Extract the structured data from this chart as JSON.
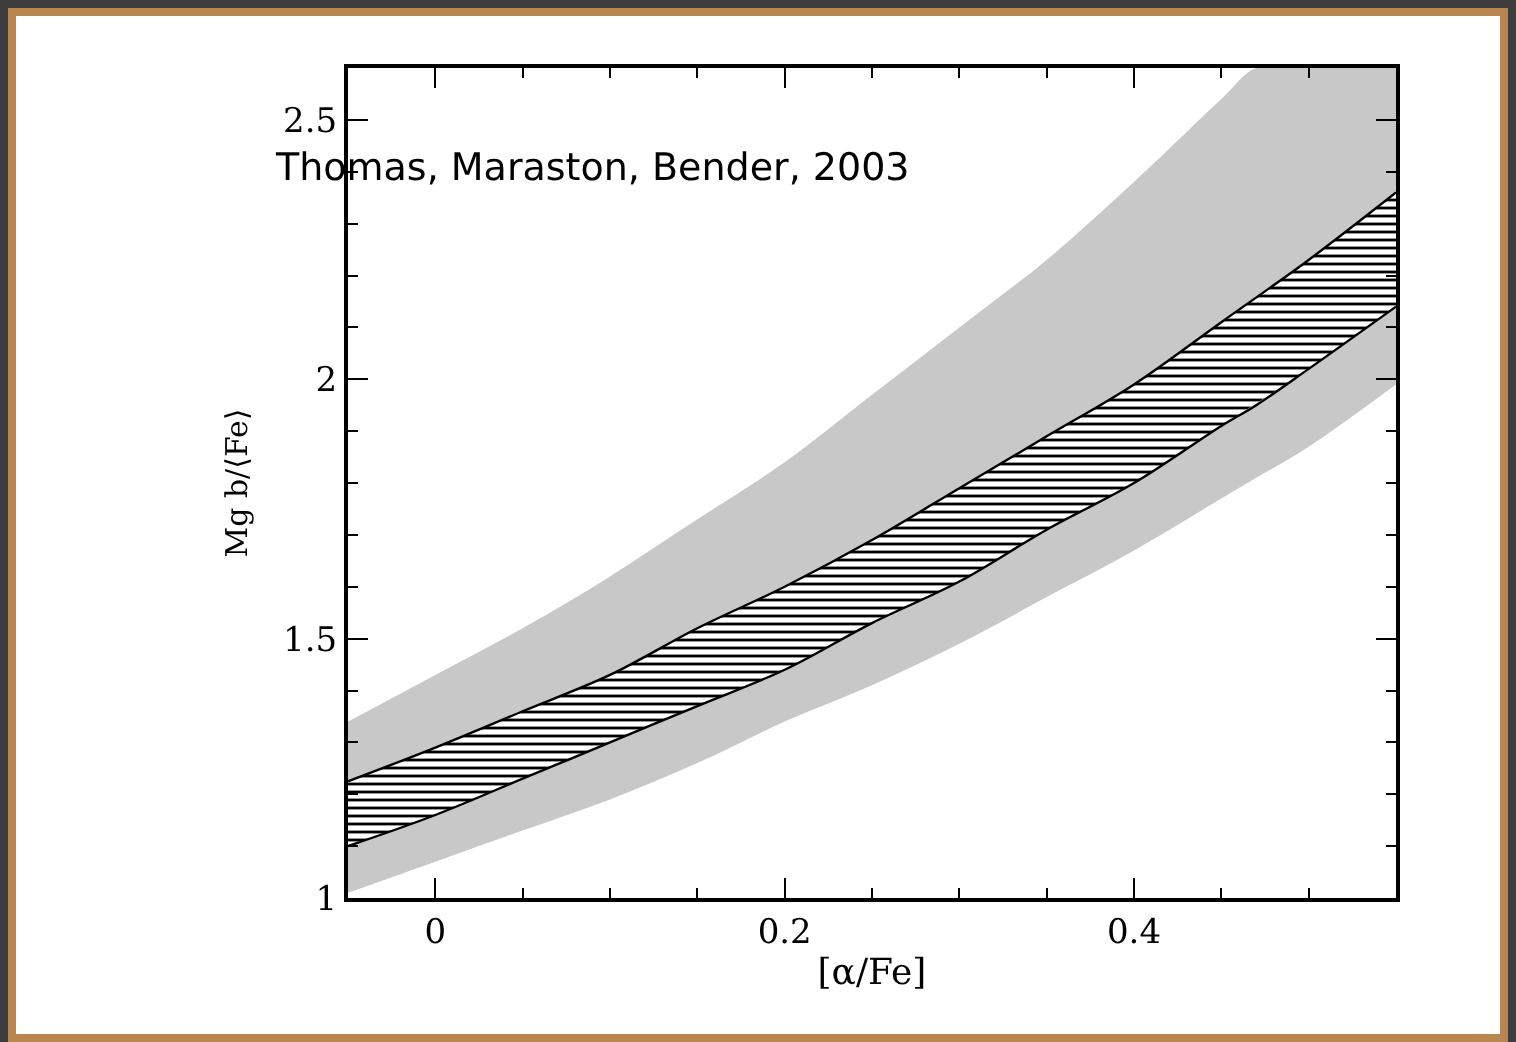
{
  "chart_data": {
    "type": "line",
    "xlabel": "[α/Fe]",
    "ylabel": "Mg b/⟨Fe⟩",
    "annotations": [
      "Thomas, Maraston, Bender, 2003"
    ],
    "xlim": [
      -0.05,
      0.55
    ],
    "xticks": [
      0,
      0.2,
      0.4
    ],
    "ylim": [
      1,
      2.6
    ],
    "yticks": [
      1,
      1.5,
      2,
      2.5
    ],
    "grid": false,
    "series": [
      {
        "color": "#000000",
        "x": [
          -0.05,
          0,
          0.05,
          0.1,
          0.15,
          0.2,
          0.25,
          0.3,
          0.35,
          0.4,
          0.45,
          0.47,
          0.5,
          0.55
        ],
        "values": [
          1.1,
          1.16,
          1.23,
          1.3,
          1.37,
          1.44,
          1.53,
          1.61,
          1.71,
          1.8,
          1.91,
          1.95,
          2.02,
          2.14
        ],
        "lower": [
          1.01,
          1.07,
          1.13,
          1.19,
          1.26,
          1.34,
          1.41,
          1.49,
          1.58,
          1.67,
          1.77,
          1.81,
          1.87,
          1.99
        ],
        "upper": [
          1.34,
          1.43,
          1.52,
          1.62,
          1.73,
          1.84,
          1.97,
          2.1,
          2.23,
          2.38,
          2.54,
          2.6,
          2.6,
          2.6
        ]
      },
      {
        "color": "#000000",
        "x": [
          -0.05,
          0,
          0.05,
          0.1,
          0.15,
          0.2,
          0.25,
          0.3,
          0.35,
          0.4,
          0.45,
          0.5,
          0.55
        ],
        "values": [
          1.225,
          1.29,
          1.36,
          1.43,
          1.52,
          1.6,
          1.69,
          1.79,
          1.89,
          1.99,
          2.11,
          2.23,
          2.36
        ],
        "lower": [
          1.1,
          1.16,
          1.23,
          1.3,
          1.37,
          1.44,
          1.53,
          1.61,
          1.71,
          1.8,
          1.91,
          2.02,
          2.14
        ],
        "upper": [
          1.225,
          1.29,
          1.36,
          1.43,
          1.52,
          1.6,
          1.69,
          1.79,
          1.89,
          1.99,
          2.11,
          2.23,
          2.36
        ]
      }
    ]
  }
}
